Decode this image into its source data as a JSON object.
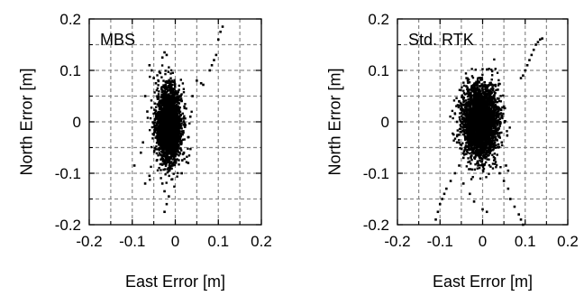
{
  "chart_data": [
    {
      "type": "scatter",
      "panel_label": "MBS",
      "xlabel": "East Error [m]",
      "ylabel": "North Error [m]",
      "xlim": [
        -0.2,
        0.2
      ],
      "ylim": [
        -0.2,
        0.2
      ],
      "xticks": [
        "-0.2",
        "-0.1",
        "0",
        "0.1",
        "0.2"
      ],
      "yticks": [
        "-0.2",
        "-0.1",
        "0",
        "0.1",
        "0.2"
      ],
      "grid": true,
      "grid_step": 0.05,
      "point_color": "#000000",
      "cluster": {
        "center": [
          -0.015,
          -0.005
        ],
        "sd": [
          0.014,
          0.035
        ],
        "count": 2800
      },
      "outliers": [
        [
          -0.06,
          0.11
        ],
        [
          -0.055,
          0.1
        ],
        [
          -0.05,
          0.085
        ],
        [
          -0.045,
          0.075
        ],
        [
          -0.03,
          0.125
        ],
        [
          -0.025,
          0.135
        ],
        [
          -0.02,
          0.13
        ],
        [
          -0.035,
          0.095
        ],
        [
          -0.07,
          0.05
        ],
        [
          -0.065,
          0.02
        ],
        [
          -0.075,
          -0.04
        ],
        [
          -0.08,
          -0.06
        ],
        [
          -0.095,
          -0.085
        ],
        [
          -0.07,
          -0.12
        ],
        [
          -0.06,
          -0.105
        ],
        [
          -0.03,
          -0.12
        ],
        [
          -0.025,
          -0.135
        ],
        [
          -0.02,
          -0.16
        ],
        [
          -0.025,
          -0.175
        ],
        [
          -0.015,
          -0.145
        ],
        [
          0.02,
          -0.06
        ],
        [
          0.03,
          -0.03
        ],
        [
          0.035,
          0.01
        ],
        [
          0.04,
          0.05
        ],
        [
          0.05,
          0.08
        ],
        [
          0.06,
          0.075
        ],
        [
          0.065,
          0.072
        ],
        [
          0.08,
          0.1
        ],
        [
          0.085,
          0.11
        ],
        [
          0.09,
          0.12
        ],
        [
          0.095,
          0.13
        ],
        [
          0.1,
          0.16
        ],
        [
          0.105,
          0.175
        ],
        [
          0.11,
          0.185
        ],
        [
          0.03,
          -0.08
        ],
        [
          0.015,
          -0.1
        ]
      ]
    },
    {
      "type": "scatter",
      "panel_label": "Std. RTK",
      "xlabel": "East Error [m]",
      "ylabel": "North Error [m]",
      "xlim": [
        -0.2,
        0.2
      ],
      "ylim": [
        -0.2,
        0.2
      ],
      "xticks": [
        "-0.2",
        "-0.1",
        "0",
        "0.1",
        "0.2"
      ],
      "yticks": [
        "-0.2",
        "-0.1",
        "0",
        "0.1",
        "0.2"
      ],
      "grid": true,
      "grid_step": 0.05,
      "point_color": "#000000",
      "cluster": {
        "center": [
          -0.005,
          0.0
        ],
        "sd": [
          0.02,
          0.035
        ],
        "count": 3000
      },
      "outliers": [
        [
          0.09,
          0.085
        ],
        [
          0.095,
          0.09
        ],
        [
          0.1,
          0.1
        ],
        [
          0.105,
          0.11
        ],
        [
          0.11,
          0.12
        ],
        [
          0.115,
          0.13
        ],
        [
          0.12,
          0.14
        ],
        [
          0.125,
          0.15
        ],
        [
          0.13,
          0.155
        ],
        [
          0.135,
          0.16
        ],
        [
          0.14,
          0.162
        ],
        [
          -0.11,
          -0.19
        ],
        [
          -0.105,
          -0.175
        ],
        [
          -0.1,
          -0.16
        ],
        [
          -0.095,
          -0.15
        ],
        [
          -0.09,
          -0.14
        ],
        [
          -0.085,
          -0.13
        ],
        [
          -0.075,
          -0.115
        ],
        [
          -0.065,
          -0.1
        ],
        [
          -0.055,
          -0.085
        ],
        [
          -0.045,
          -0.07
        ],
        [
          0.04,
          -0.1
        ],
        [
          0.05,
          -0.115
        ],
        [
          0.06,
          -0.13
        ],
        [
          0.065,
          -0.15
        ],
        [
          0.075,
          -0.165
        ],
        [
          0.085,
          -0.18
        ],
        [
          0.09,
          -0.19
        ],
        [
          0.095,
          -0.2
        ],
        [
          0.06,
          -0.095
        ],
        [
          0.055,
          -0.085
        ],
        [
          0.045,
          -0.04
        ],
        [
          0.05,
          0.03
        ],
        [
          -0.055,
          0.04
        ],
        [
          -0.06,
          0.0
        ],
        [
          -0.06,
          -0.04
        ],
        [
          -0.045,
          -0.12
        ],
        [
          -0.03,
          -0.14
        ],
        [
          -0.02,
          -0.155
        ],
        [
          0.0,
          -0.17
        ],
        [
          0.01,
          -0.175
        ]
      ]
    }
  ]
}
